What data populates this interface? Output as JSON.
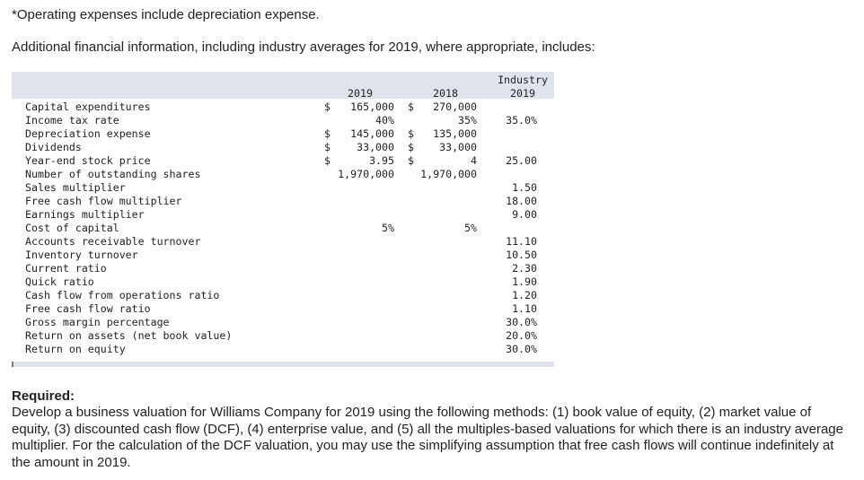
{
  "note": "*Operating expenses include depreciation expense.",
  "intro": "Additional financial information, including industry averages for 2019, where appropriate, includes:",
  "table": {
    "headers": {
      "y2019": "2019",
      "y2018": "2018",
      "industry_top": "Industry",
      "industry_bottom": "2019"
    },
    "rows": [
      {
        "label": "Capital expenditures",
        "d2019": "$",
        "v2019": "165,000",
        "d2018": "$",
        "v2018": "270,000",
        "ind": ""
      },
      {
        "label": "Income tax rate",
        "d2019": "",
        "v2019": "40%",
        "d2018": "",
        "v2018": "35%",
        "ind": "35.0%"
      },
      {
        "label": "Depreciation expense",
        "d2019": "$",
        "v2019": "145,000",
        "d2018": "$",
        "v2018": "135,000",
        "ind": ""
      },
      {
        "label": "Dividends",
        "d2019": "$",
        "v2019": "33,000",
        "d2018": "$",
        "v2018": "33,000",
        "ind": ""
      },
      {
        "label": "Year-end stock price",
        "d2019": "$",
        "v2019": "3.95",
        "d2018": "$",
        "v2018": "4",
        "ind": "25.00"
      },
      {
        "label": "Number of outstanding shares",
        "d2019": "",
        "v2019": "1,970,000",
        "d2018": "",
        "v2018": "1,970,000",
        "ind": ""
      },
      {
        "label": "Sales multiplier",
        "d2019": "",
        "v2019": "",
        "d2018": "",
        "v2018": "",
        "ind": "1.50"
      },
      {
        "label": "Free cash flow multiplier",
        "d2019": "",
        "v2019": "",
        "d2018": "",
        "v2018": "",
        "ind": "18.00"
      },
      {
        "label": "Earnings multiplier",
        "d2019": "",
        "v2019": "",
        "d2018": "",
        "v2018": "",
        "ind": "9.00"
      },
      {
        "label": "Cost of capital",
        "d2019": "",
        "v2019": "5%",
        "d2018": "",
        "v2018": "5%",
        "ind": ""
      },
      {
        "label": "Accounts receivable turnover",
        "d2019": "",
        "v2019": "",
        "d2018": "",
        "v2018": "",
        "ind": "11.10"
      },
      {
        "label": "Inventory turnover",
        "d2019": "",
        "v2019": "",
        "d2018": "",
        "v2018": "",
        "ind": "10.50"
      },
      {
        "label": "Current ratio",
        "d2019": "",
        "v2019": "",
        "d2018": "",
        "v2018": "",
        "ind": "2.30"
      },
      {
        "label": "Quick ratio",
        "d2019": "",
        "v2019": "",
        "d2018": "",
        "v2018": "",
        "ind": "1.90"
      },
      {
        "label": "Cash flow from operations ratio",
        "d2019": "",
        "v2019": "",
        "d2018": "",
        "v2018": "",
        "ind": "1.20"
      },
      {
        "label": "Free cash flow ratio",
        "d2019": "",
        "v2019": "",
        "d2018": "",
        "v2018": "",
        "ind": "1.10"
      },
      {
        "label": "Gross margin percentage",
        "d2019": "",
        "v2019": "",
        "d2018": "",
        "v2018": "",
        "ind": "30.0%"
      },
      {
        "label": "Return on assets (net book value)",
        "d2019": "",
        "v2019": "",
        "d2018": "",
        "v2018": "",
        "ind": "20.0%"
      },
      {
        "label": "Return on equity",
        "d2019": "",
        "v2019": "",
        "d2018": "",
        "v2018": "",
        "ind": "30.0%"
      }
    ]
  },
  "required": {
    "title": "Required:",
    "body": "Develop a business valuation for Williams Company for 2019 using the following methods: (1) book value of equity, (2) market value of equity, (3) discounted cash flow (DCF), (4) enterprise value, and (5) all the multiples-based valuations for which there is an industry average multiplier. For the calculation of the DCF valuation, you may use the simplifying assumption that free cash flows will continue indefinitely at the amount in 2019."
  }
}
